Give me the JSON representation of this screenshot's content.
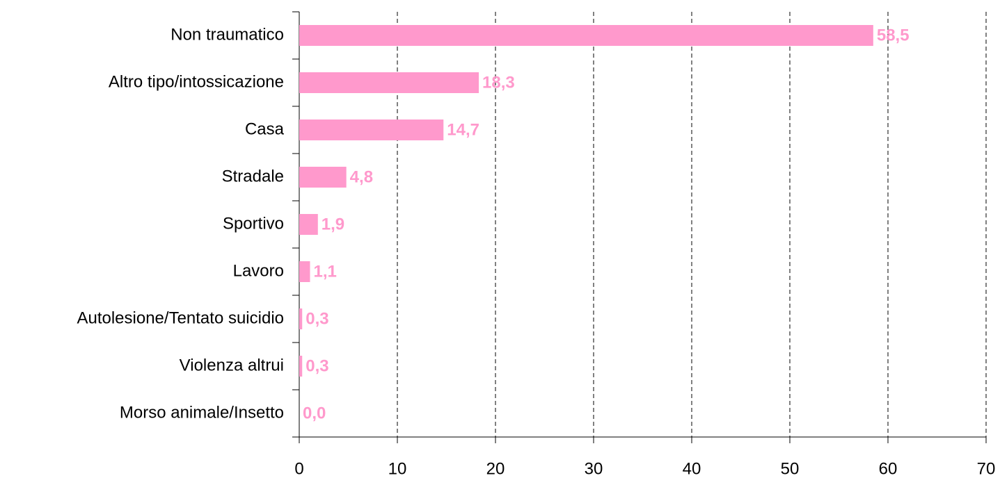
{
  "chart_data": {
    "type": "bar",
    "orientation": "horizontal",
    "categories": [
      "Non traumatico",
      "Altro tipo/intossicazione",
      "Casa",
      "Stradale",
      "Sportivo",
      "Lavoro",
      "Autolesione/Tentato suicidio",
      "Violenza altrui",
      "Morso animale/Insetto"
    ],
    "values": [
      58.5,
      18.3,
      14.7,
      4.8,
      1.9,
      1.1,
      0.3,
      0.3,
      0.0
    ],
    "value_labels": [
      "58,5",
      "18,3",
      "14,7",
      "4,8",
      "1,9",
      "1,1",
      "0,3",
      "0,3",
      "0,0"
    ],
    "color": "#ff99cc",
    "xlim": [
      0,
      70
    ],
    "xticks": [
      0,
      10,
      20,
      30,
      40,
      50,
      60,
      70
    ],
    "grid": true
  }
}
